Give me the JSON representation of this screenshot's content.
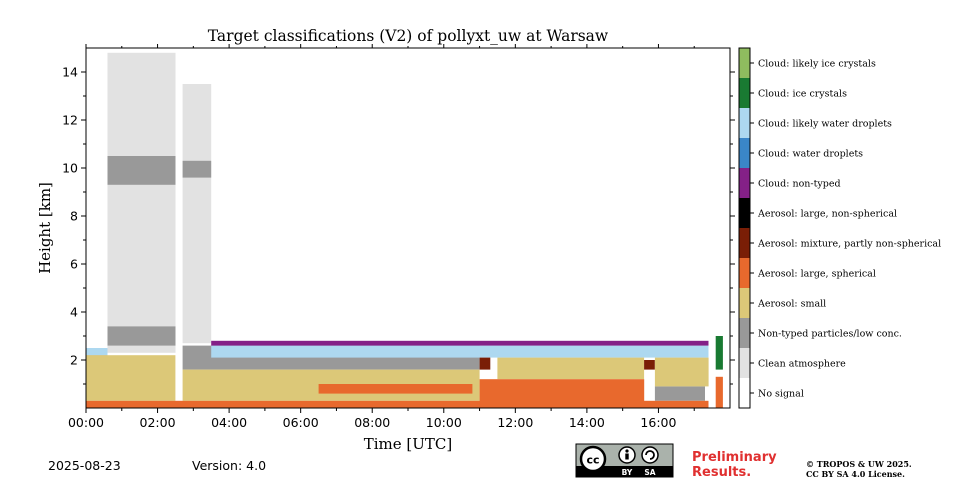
{
  "chart_data": {
    "type": "heatmap",
    "title": "Target classifications (V2) of pollyxt_uw at Warsaw",
    "xlabel": "Time [UTC]",
    "ylabel": "Height [km]",
    "xlim": [
      0,
      18
    ],
    "ylim": [
      0,
      15
    ],
    "x_ticks": [
      {
        "value": 0,
        "label": "00:00"
      },
      {
        "value": 2,
        "label": "02:00"
      },
      {
        "value": 4,
        "label": "04:00"
      },
      {
        "value": 6,
        "label": "06:00"
      },
      {
        "value": 8,
        "label": "08:00"
      },
      {
        "value": 10,
        "label": "10:00"
      },
      {
        "value": 12,
        "label": "12:00"
      },
      {
        "value": 14,
        "label": "14:00"
      },
      {
        "value": 16,
        "label": "16:00"
      }
    ],
    "y_ticks": [
      {
        "value": 2,
        "label": "2"
      },
      {
        "value": 4,
        "label": "4"
      },
      {
        "value": 6,
        "label": "6"
      },
      {
        "value": 8,
        "label": "8"
      },
      {
        "value": 10,
        "label": "10"
      },
      {
        "value": 12,
        "label": "12"
      },
      {
        "value": 14,
        "label": "14"
      }
    ],
    "legend_placement": "right",
    "classes": [
      {
        "label": "Cloud: likely ice crystals",
        "color": "#8fbc5f"
      },
      {
        "label": "Cloud: ice crystals",
        "color": "#197a32"
      },
      {
        "label": "Cloud: likely water droplets",
        "color": "#add8f0"
      },
      {
        "label": "Cloud: water droplets",
        "color": "#3a86c8"
      },
      {
        "label": "Cloud: non-typed",
        "color": "#842087"
      },
      {
        "label": "Aerosol: large, non-spherical",
        "color": "#000000"
      },
      {
        "label": "Aerosol: mixture, partly non-spherical",
        "color": "#7a1e06"
      },
      {
        "label": "Aerosol: large, spherical",
        "color": "#e8692d"
      },
      {
        "label": "Aerosol: small",
        "color": "#dcc878"
      },
      {
        "label": "Non-typed particles/low conc.",
        "color": "#999999"
      },
      {
        "label": "Clean atmosphere",
        "color": "#e2e2e2"
      },
      {
        "label": "No signal",
        "color": "#ffffff"
      }
    ],
    "regions": [
      {
        "cls": "Clean atmosphere",
        "t0": 0.6,
        "t1": 2.5,
        "h0": 2.3,
        "h1": 14.8
      },
      {
        "cls": "Clean atmosphere",
        "t0": 2.7,
        "t1": 3.5,
        "h0": 2.7,
        "h1": 13.5
      },
      {
        "cls": "Non-typed particles/low conc.",
        "t0": 0.6,
        "t1": 2.5,
        "h0": 9.3,
        "h1": 10.5
      },
      {
        "cls": "Non-typed particles/low conc.",
        "t0": 0.6,
        "t1": 2.5,
        "h0": 2.6,
        "h1": 3.4
      },
      {
        "cls": "Non-typed particles/low conc.",
        "t0": 2.7,
        "t1": 3.5,
        "h0": 9.6,
        "h1": 10.3
      },
      {
        "cls": "Non-typed particles/low conc.",
        "t0": 2.7,
        "t1": 11.0,
        "h0": 1.6,
        "h1": 2.6
      },
      {
        "cls": "Non-typed particles/low conc.",
        "t0": 0.0,
        "t1": 0.6,
        "h0": 1.4,
        "h1": 2.2
      },
      {
        "cls": "Non-typed particles/low conc.",
        "t0": 15.9,
        "t1": 17.3,
        "h0": 0.3,
        "h1": 0.9
      },
      {
        "cls": "Likely water",
        "t0": 0.0,
        "t1": 0.6,
        "h0": 2.2,
        "h1": 2.5
      },
      {
        "cls": "Cloud: likely water droplets",
        "t0": 3.5,
        "t1": 17.4,
        "h0": 2.1,
        "h1": 2.6
      },
      {
        "cls": "Cloud: non-typed",
        "t0": 3.5,
        "t1": 17.4,
        "h0": 2.6,
        "h1": 2.8
      },
      {
        "cls": "Aerosol: small",
        "t0": 0.0,
        "t1": 2.5,
        "h0": 0.3,
        "h1": 2.2
      },
      {
        "cls": "Aerosol: small",
        "t0": 2.7,
        "t1": 11.0,
        "h0": 0.3,
        "h1": 1.6
      },
      {
        "cls": "Aerosol: small",
        "t0": 11.5,
        "t1": 15.6,
        "h0": 1.2,
        "h1": 2.1
      },
      {
        "cls": "Aerosol: small",
        "t0": 15.9,
        "t1": 17.4,
        "h0": 0.9,
        "h1": 2.1
      },
      {
        "cls": "Aerosol: large, spherical",
        "t0": 0.0,
        "t1": 17.4,
        "h0": 0.0,
        "h1": 0.3
      },
      {
        "cls": "Aerosol: large, spherical",
        "t0": 11.0,
        "t1": 15.6,
        "h0": 0.0,
        "h1": 1.2
      },
      {
        "cls": "Aerosol: large, spherical",
        "t0": 17.6,
        "t1": 17.8,
        "h0": 0.0,
        "h1": 1.3
      },
      {
        "cls": "Aerosol: large, spherical",
        "t0": 6.5,
        "t1": 10.8,
        "h0": 0.6,
        "h1": 1.0
      },
      {
        "cls": "Aerosol: mixture, partly non-spherical",
        "t0": 11.0,
        "t1": 11.3,
        "h0": 1.6,
        "h1": 2.1
      },
      {
        "cls": "Aerosol: mixture, partly non-spherical",
        "t0": 15.6,
        "t1": 15.9,
        "h0": 1.6,
        "h1": 2.0
      },
      {
        "cls": "Cloud: ice crystals",
        "t0": 17.6,
        "t1": 17.8,
        "h0": 1.6,
        "h1": 3.0
      }
    ]
  },
  "footer": {
    "date": "2025-08-23",
    "version": "Version: 4.0",
    "preliminary_line1": "Preliminary",
    "preliminary_line2": "Results.",
    "copyright_line1": "© TROPOS & UW 2025.",
    "copyright_line2": "CC BY SA 4.0 License.",
    "cc_logo_text": "cc",
    "cc_by": "BY",
    "cc_sa": "SA"
  }
}
